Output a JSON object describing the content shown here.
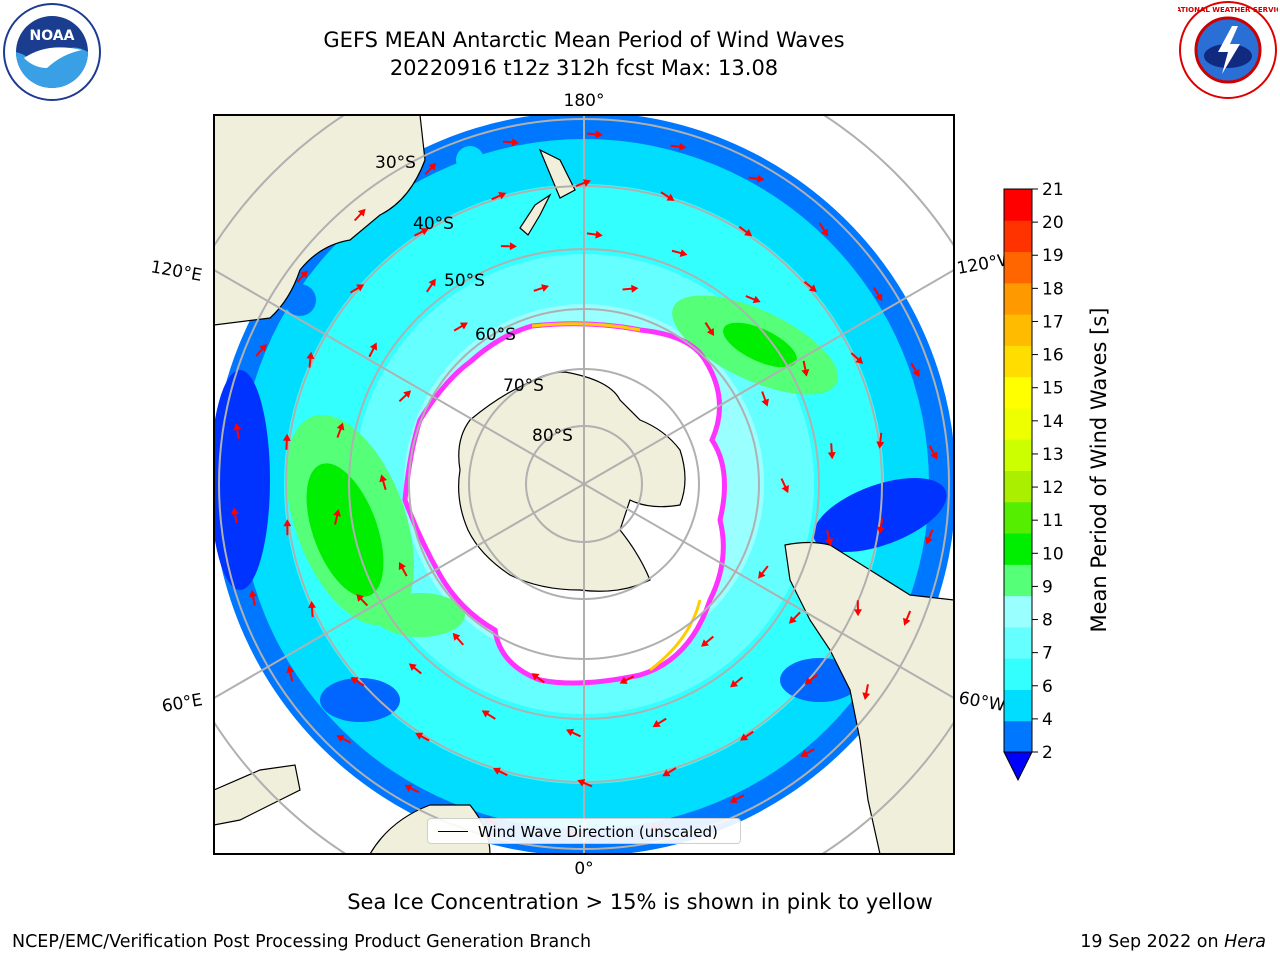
{
  "title": {
    "line1": "GEFS MEAN Antarctic Mean Period of Wind Waves",
    "line2": "20220916 t12z 312h fcst   Max: 13.08"
  },
  "map": {
    "projection": "south polar stereographic",
    "longitude_labels": {
      "top": "180°",
      "bottom": "0°",
      "left_upper": "120°E",
      "left_lower": "60°E",
      "right_upper": "120°W",
      "right_lower": "60°W"
    },
    "latitude_labels": [
      "30°S",
      "40°S",
      "50°S",
      "60°S",
      "70°S",
      "80°S"
    ],
    "arrow_color": "#ff0000",
    "land_color": "#efefdb",
    "ice_edge_colors": [
      "#ff33ff",
      "#ffcc00"
    ]
  },
  "legend": {
    "label": "Wind Wave Direction (unscaled)"
  },
  "colorbar": {
    "label": "Mean Period of Wind Waves [s]",
    "ticks": [
      "2",
      "4",
      "6",
      "7",
      "8",
      "9",
      "10",
      "11",
      "12",
      "13",
      "14",
      "15",
      "16",
      "17",
      "18",
      "19",
      "20",
      "21"
    ],
    "colors": [
      "#0077ff",
      "#00ddff",
      "#33ffff",
      "#66ffff",
      "#99ffff",
      "#55ff77",
      "#00ee00",
      "#55ee00",
      "#aaee00",
      "#ccff00",
      "#eeff00",
      "#ffff00",
      "#ffdd00",
      "#ffbb00",
      "#ff9900",
      "#ff6600",
      "#ff3300",
      "#ff0000"
    ],
    "extend_color": "#0000ff"
  },
  "caption": "Sea Ice Concentration > 15% is shown in pink to yellow",
  "footer": {
    "left": "NCEP/EMC/Verification Post Processing Product Generation Branch",
    "right_date": "19 Sep 2022 on ",
    "right_host": "Hera"
  },
  "logos": {
    "noaa": "NOAA",
    "nws": "NATIONAL WEATHER SERVICE"
  }
}
